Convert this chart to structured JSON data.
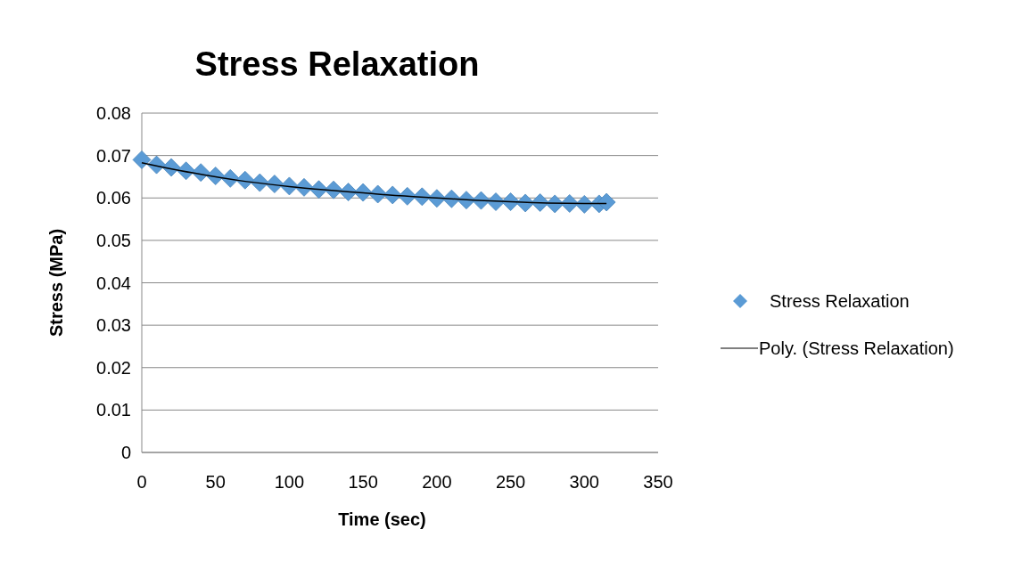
{
  "chart_data": {
    "type": "scatter",
    "title": "Stress Relaxation",
    "xlabel": "Time (sec)",
    "ylabel": "Stress (MPa)",
    "xlim": [
      0,
      350
    ],
    "xticks": [
      0,
      50,
      100,
      150,
      200,
      250,
      300,
      350
    ],
    "ylim": [
      0,
      0.08
    ],
    "yticks": [
      0,
      0.01,
      0.02,
      0.03,
      0.04,
      0.05,
      0.06,
      0.07,
      0.08
    ],
    "grid": "y",
    "legend": "right",
    "series": [
      {
        "name": "Stress Relaxation",
        "marker": "diamond",
        "color": "#5b9bd5",
        "x": [
          0,
          10,
          20,
          30,
          40,
          50,
          60,
          70,
          80,
          90,
          100,
          110,
          120,
          130,
          140,
          150,
          160,
          170,
          180,
          190,
          200,
          210,
          220,
          230,
          240,
          250,
          260,
          270,
          280,
          290,
          300,
          310,
          315
        ],
        "values": [
          0.069,
          0.0678,
          0.0672,
          0.0664,
          0.066,
          0.0652,
          0.0646,
          0.0642,
          0.0636,
          0.0633,
          0.0628,
          0.0625,
          0.062,
          0.0619,
          0.0614,
          0.0613,
          0.0609,
          0.0607,
          0.0604,
          0.0603,
          0.0599,
          0.0598,
          0.0595,
          0.0594,
          0.0591,
          0.0591,
          0.0588,
          0.0589,
          0.0586,
          0.0587,
          0.0585,
          0.0586,
          0.059
        ]
      },
      {
        "name": "Poly. (Stress Relaxation)",
        "type": "line",
        "color": "#000000",
        "marker": "none",
        "line_style": "solid",
        "x": [
          0,
          25,
          50,
          75,
          100,
          125,
          150,
          175,
          200,
          225,
          250,
          275,
          300,
          315
        ],
        "values": [
          0.0683,
          0.0665,
          0.065,
          0.0637,
          0.0627,
          0.0619,
          0.0612,
          0.0605,
          0.06,
          0.0595,
          0.0591,
          0.0588,
          0.0587,
          0.0587
        ]
      }
    ]
  }
}
